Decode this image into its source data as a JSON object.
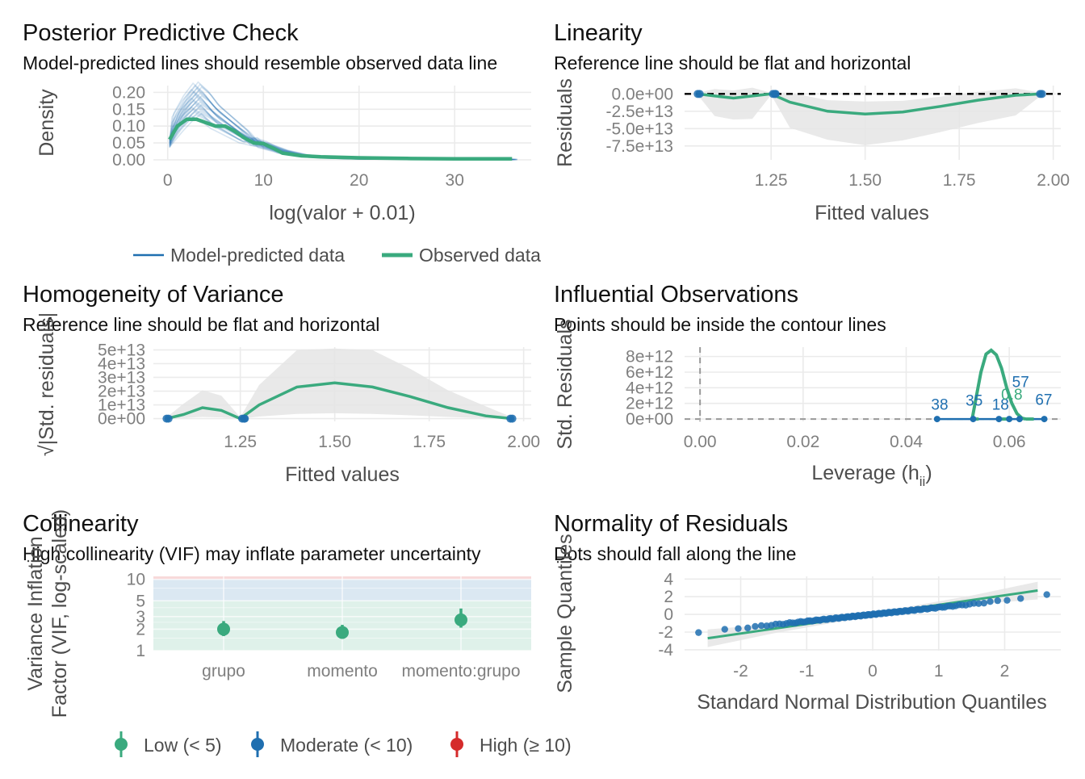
{
  "colors": {
    "blue": "#1f6fb0",
    "green": "#3aaa7e",
    "red": "#d52b2b",
    "band": "#e5e5e5",
    "grid": "#ebebeb"
  },
  "chart_data": [
    {
      "panel": "ppc",
      "type": "line",
      "title": "Posterior Predictive Check",
      "subtitle": "Model-predicted lines should resemble observed data line",
      "xlabel": "log(valor + 0.01)",
      "ylabel": "Density",
      "xlim": [
        -1.5,
        38
      ],
      "ylim": [
        0,
        0.22
      ],
      "xticks": [
        "0",
        "10",
        "20",
        "30"
      ],
      "yticks": [
        "0.00",
        "0.05",
        "0.10",
        "0.15",
        "0.20"
      ],
      "legend": [
        "Model-predicted data",
        "Observed data"
      ],
      "series": [
        {
          "name": "Observed data",
          "x": [
            0.2,
            1,
            2,
            3,
            4,
            5,
            6,
            7,
            8,
            9,
            10,
            11,
            12,
            14,
            16,
            20,
            25,
            30,
            36
          ],
          "y": [
            0.06,
            0.1,
            0.12,
            0.12,
            0.11,
            0.1,
            0.1,
            0.085,
            0.065,
            0.05,
            0.048,
            0.035,
            0.02,
            0.012,
            0.009,
            0.006,
            0.004,
            0.003,
            0.003
          ]
        },
        {
          "name": "Model-predicted data",
          "x": [
            0.2,
            1,
            2,
            3,
            4,
            5,
            6,
            7,
            8,
            9,
            10,
            12,
            14,
            17,
            20,
            25,
            30,
            36
          ],
          "y": [
            0.05,
            0.11,
            0.15,
            0.18,
            0.16,
            0.13,
            0.11,
            0.09,
            0.07,
            0.055,
            0.045,
            0.025,
            0.013,
            0.006,
            0.003,
            0.002,
            0.001,
            0.001
          ]
        }
      ]
    },
    {
      "panel": "linearity",
      "type": "scatter",
      "title": "Linearity",
      "subtitle": "Reference line should be flat and horizontal",
      "xlabel": "Fitted values",
      "ylabel": "Residuals",
      "xlim": [
        1.02,
        2.02
      ],
      "ylim": [
        -95000000000000.0,
        12000000000000.0
      ],
      "xticks": [
        "1.25",
        "1.50",
        "1.75",
        "2.00"
      ],
      "yticks": [
        "0.0e+00",
        "-2.5e+13",
        "-5.0e+13",
        "-7.5e+13"
      ],
      "points": {
        "x": [
          1.055,
          1.06,
          1.255,
          1.26,
          1.262,
          1.965,
          1.97
        ],
        "y": [
          0,
          0,
          0,
          0,
          0,
          0,
          0
        ]
      },
      "smooth": {
        "x": [
          1.055,
          1.1,
          1.15,
          1.2,
          1.25,
          1.3,
          1.4,
          1.5,
          1.6,
          1.7,
          1.8,
          1.9,
          1.97
        ],
        "y": [
          0,
          -3000000000000.0,
          -6000000000000.0,
          -3000000000000.0,
          0,
          -12000000000000.0,
          -25000000000000.0,
          -29000000000000.0,
          -26000000000000.0,
          -18000000000000.0,
          -9000000000000.0,
          -2000000000000.0,
          0
        ]
      }
    },
    {
      "panel": "homogeneity",
      "type": "scatter",
      "title": "Homogeneity of Variance",
      "subtitle": "Reference line should be flat and horizontal",
      "xlabel": "Fitted values",
      "ylabel": "√|Std. residuals|",
      "xlim": [
        1.02,
        2.02
      ],
      "ylim": [
        -2000000000000.0,
        52000000000000.0
      ],
      "xticks": [
        "1.25",
        "1.50",
        "1.75",
        "2.00"
      ],
      "yticks": [
        "0e+00",
        "1e+13",
        "2e+13",
        "3e+13",
        "4e+13",
        "5e+13"
      ],
      "points": {
        "x": [
          1.055,
          1.06,
          1.255,
          1.26,
          1.262,
          1.965,
          1.97
        ],
        "y": [
          0,
          0,
          0,
          0,
          0,
          0,
          0
        ]
      },
      "smooth": {
        "x": [
          1.055,
          1.1,
          1.15,
          1.2,
          1.25,
          1.3,
          1.4,
          1.5,
          1.6,
          1.7,
          1.8,
          1.9,
          1.97
        ],
        "y": [
          0,
          3000000000000.0,
          8000000000000.0,
          6000000000000.0,
          0,
          10000000000000.0,
          23000000000000.0,
          26000000000000.0,
          23000000000000.0,
          16000000000000.0,
          8000000000000.0,
          2000000000000.0,
          0
        ]
      }
    },
    {
      "panel": "influence",
      "type": "scatter",
      "title": "Influential Observations",
      "subtitle": "Points should be inside the contour lines",
      "xlabel": "Leverage (h",
      "xlabel_sub": "ii",
      "xlabel_close": ")",
      "ylabel": "Std. Residuals",
      "xlim": [
        -0.003,
        0.07
      ],
      "ylim": [
        -300000000000.0,
        9200000000000.0
      ],
      "xticks": [
        "0.00",
        "0.02",
        "0.04",
        "0.06"
      ],
      "yticks": [
        "0e+00",
        "2e+12",
        "4e+12",
        "6e+12",
        "8e+12"
      ],
      "points": {
        "x": [
          0.046,
          0.053,
          0.058,
          0.06,
          0.062,
          0.0668
        ],
        "y": [
          0,
          0,
          0,
          0,
          0,
          0
        ]
      },
      "labels": [
        {
          "text": "38",
          "x": 0.0465,
          "y": 1200000000000.0,
          "color": "blue"
        },
        {
          "text": "35",
          "x": 0.0532,
          "y": 1700000000000.0,
          "color": "blue"
        },
        {
          "text": "18",
          "x": 0.0583,
          "y": 1200000000000.0,
          "color": "blue"
        },
        {
          "text": "0.8",
          "x": 0.0605,
          "y": 2500000000000.0,
          "color": "green"
        },
        {
          "text": "57",
          "x": 0.0622,
          "y": 4100000000000.0,
          "color": "blue"
        },
        {
          "text": "67",
          "x": 0.0667,
          "y": 1800000000000.0,
          "color": "blue"
        }
      ],
      "contour": {
        "x": [
          0.0528,
          0.0535,
          0.0545,
          0.0555,
          0.0565,
          0.0575,
          0.0585,
          0.0595,
          0.0605,
          0.0615,
          0.0625,
          0.0632
        ],
        "y": [
          0,
          2500000000000.0,
          6000000000000.0,
          8300000000000.0,
          8800000000000.0,
          8200000000000.0,
          6500000000000.0,
          4000000000000.0,
          2000000000000.0,
          700000000000.0,
          100000000000.0,
          0
        ]
      }
    },
    {
      "panel": "collinearity",
      "type": "scatter",
      "title": "Collinearity",
      "subtitle": "High collinearity (VIF) may inflate parameter uncertainty",
      "xlabel": "",
      "ylabel": "Variance Inflation Factor (VIF, log-scaled)",
      "ylabel_line1": "Variance Inflation",
      "ylabel_line2": "Factor (VIF, log-scaled)",
      "ylim_log": [
        1,
        11
      ],
      "yticks": [
        "1",
        "2",
        "3",
        "5",
        "10"
      ],
      "categories": [
        "grupo",
        "momento",
        "momento:grupo"
      ],
      "values": [
        2.0,
        1.8,
        2.7
      ],
      "lower": [
        1.6,
        1.5,
        2.1
      ],
      "upper": [
        2.6,
        2.3,
        3.9
      ],
      "legend": [
        "Low (< 5)",
        "Moderate (< 10)",
        "High (≥ 10)"
      ]
    },
    {
      "panel": "normality",
      "type": "scatter",
      "title": "Normality of Residuals",
      "subtitle": "Dots should fall along the line",
      "xlabel": "Standard Normal Distribution Quantiles",
      "ylabel": "Sample Quantiles",
      "xlim": [
        -2.85,
        2.85
      ],
      "ylim": [
        -4.1,
        4.3
      ],
      "xticks": [
        "-2",
        "-1",
        "0",
        "1",
        "2"
      ],
      "yticks": [
        "4",
        "2",
        "0",
        "-2",
        "-4"
      ],
      "n": 120,
      "line": {
        "x": [
          -2.5,
          2.5
        ],
        "y": [
          -2.7,
          2.7
        ]
      }
    }
  ]
}
